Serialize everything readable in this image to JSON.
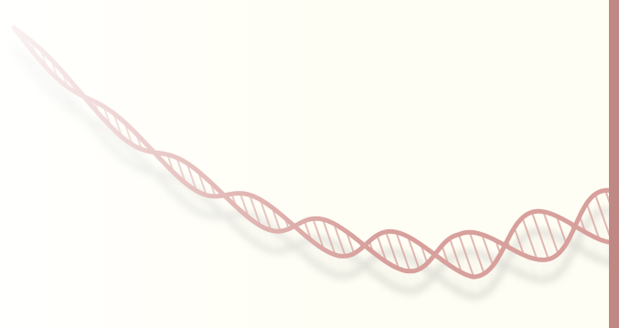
{
  "background": {
    "color": "#fffef4",
    "accent_bar_color": "#c08884"
  },
  "illustration": {
    "name": "dna-double-helix",
    "strand_color": "#d8a09c",
    "shadow_color": "#b8b8b4"
  }
}
